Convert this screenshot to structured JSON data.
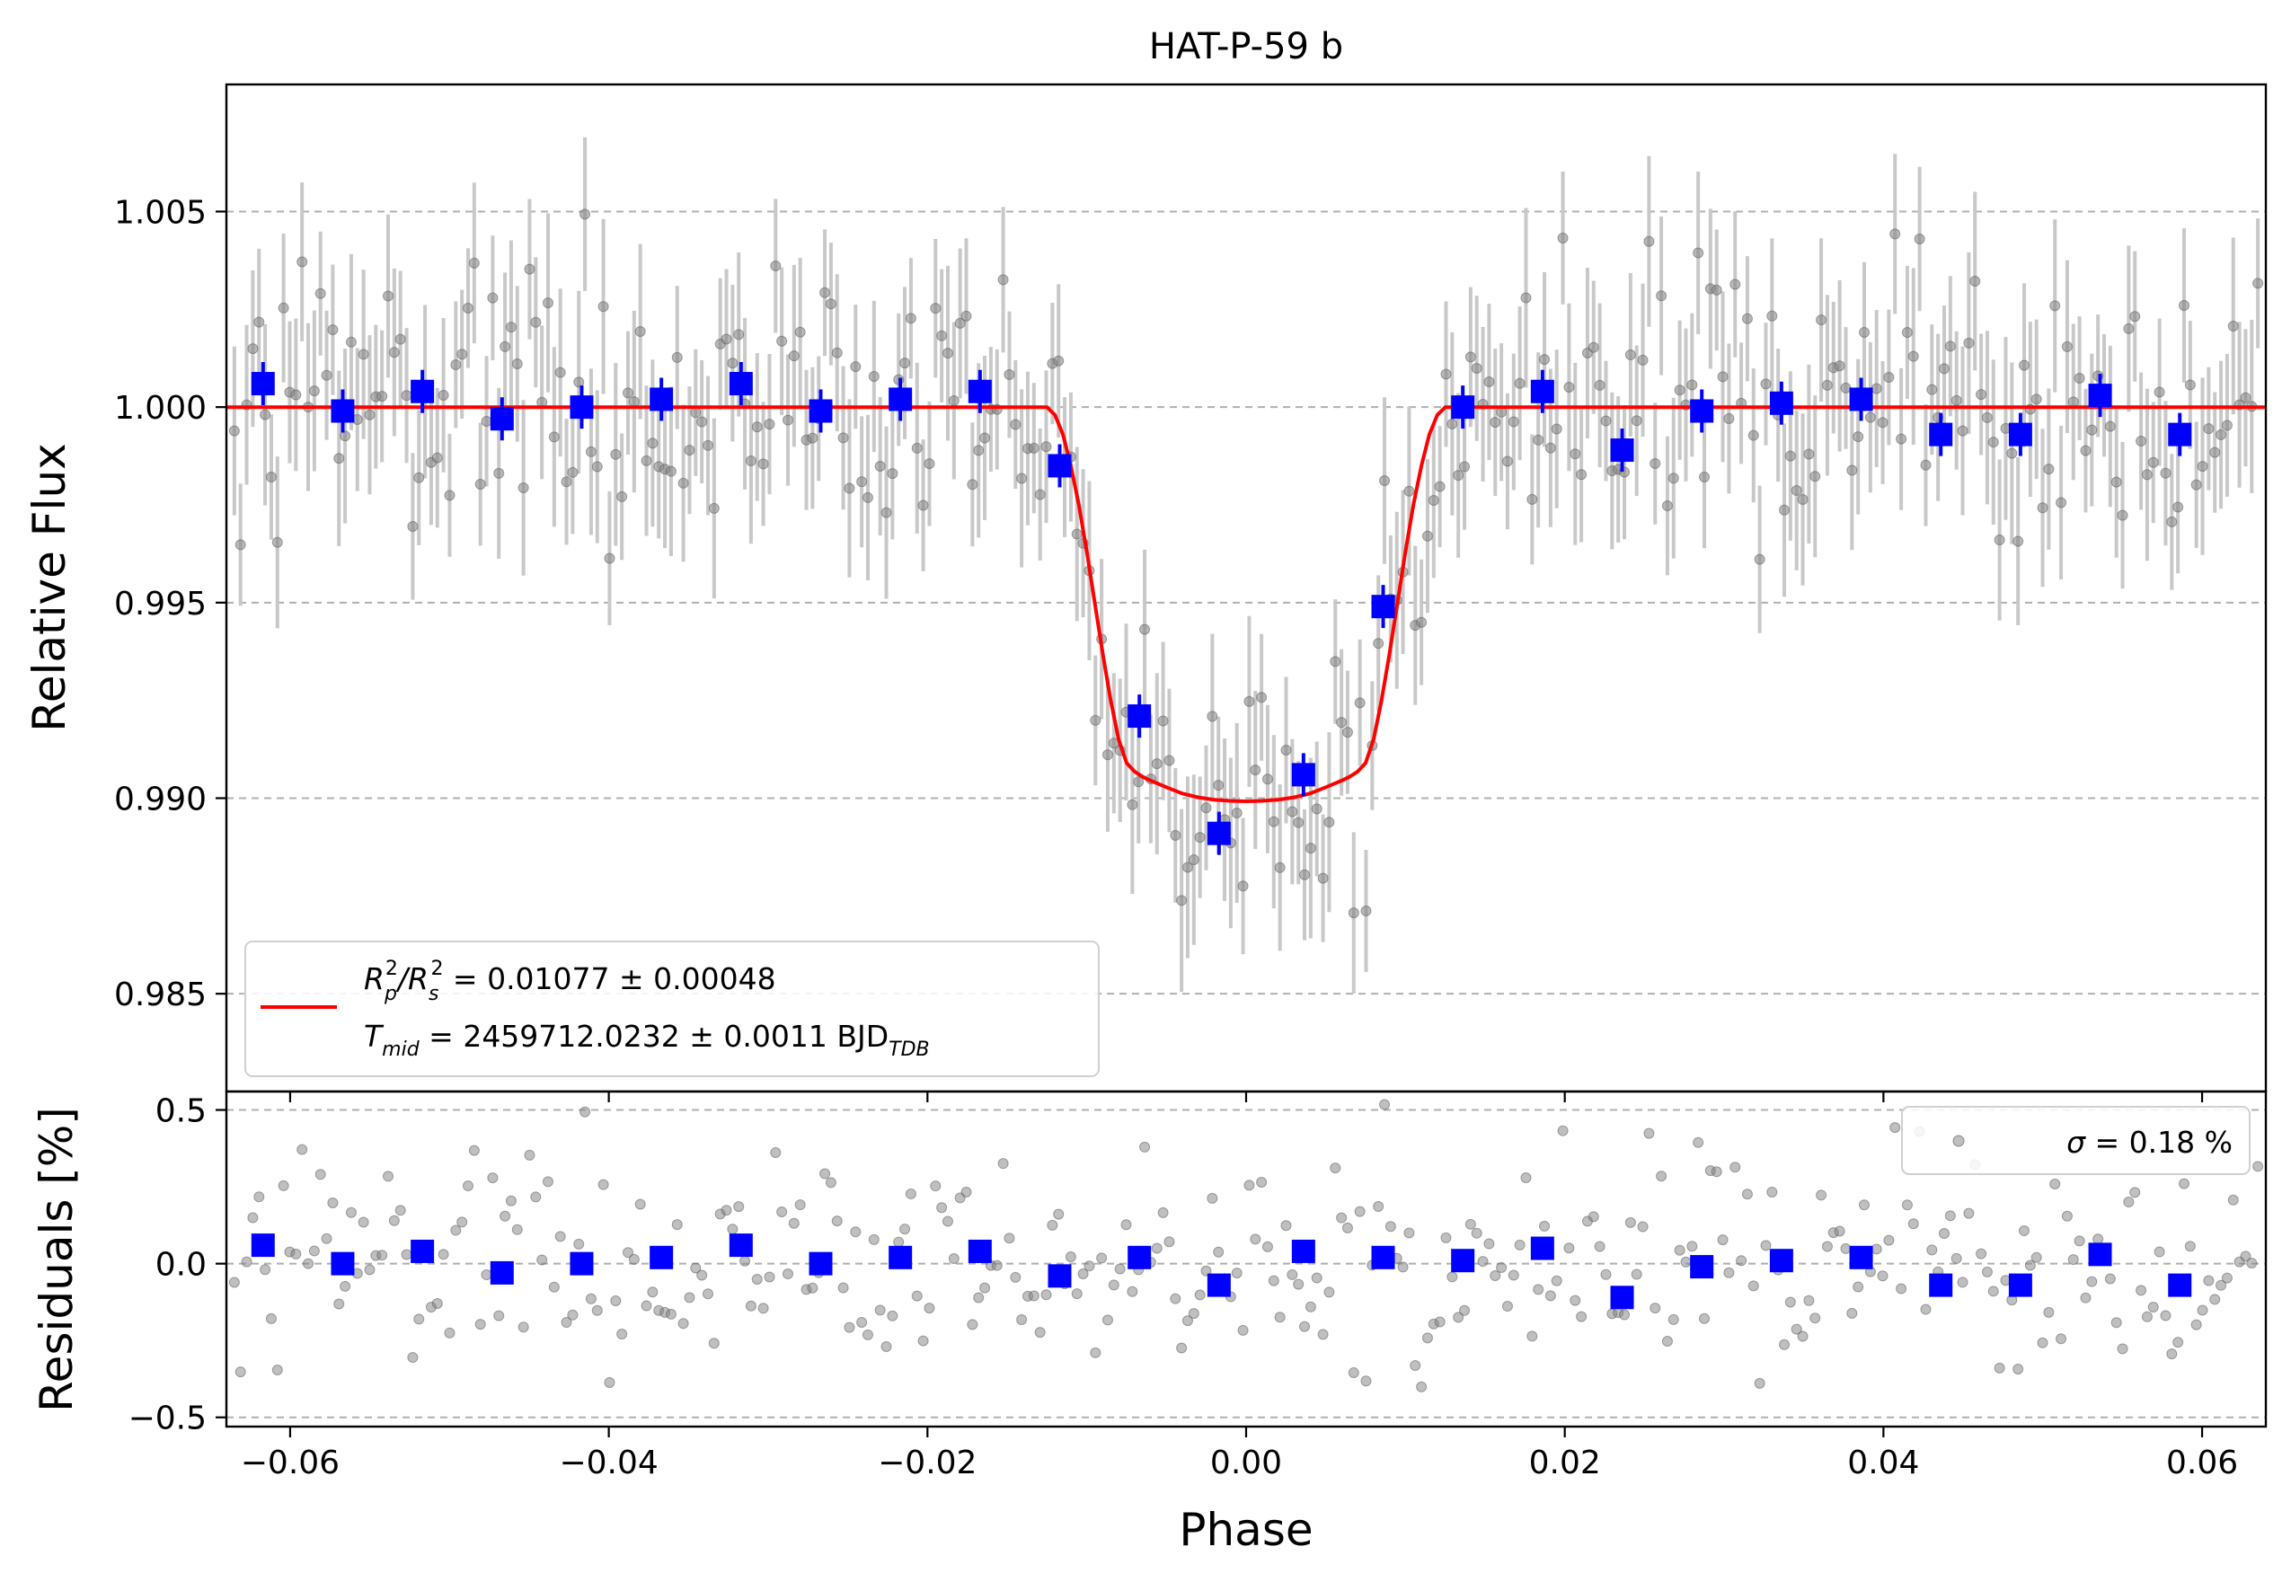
{
  "chart_data": {
    "type": "scatter",
    "title": "HAT-P-59 b",
    "xlabel": "Phase",
    "xlim": [
      -0.064,
      0.064
    ],
    "x_ticks": [
      -0.06,
      -0.04,
      -0.02,
      0.0,
      0.02,
      0.04,
      0.06
    ],
    "x_tick_labels": [
      "−0.06",
      "−0.04",
      "−0.02",
      "0.00",
      "0.02",
      "0.04",
      "0.06"
    ],
    "top_panel": {
      "ylabel": "Relative Flux",
      "ylim": [
        0.9825,
        1.00825
      ],
      "y_ticks": [
        0.985,
        0.99,
        0.995,
        1.0,
        1.005
      ],
      "y_tick_labels": [
        "0.985",
        "0.990",
        "0.995",
        "1.000",
        "1.005"
      ],
      "grid": "horizontal dashed",
      "legend_placement": "lower-left",
      "legend": {
        "line1_base": "R",
        "line1_sub1": "p",
        "line1_sup1": "2",
        "line1_slash": "/R",
        "line1_sub2": "s",
        "line1_sup2": "2",
        "line1_rest": " = 0.01077 ± 0.00048",
        "line2_base": "T",
        "line2_sub": "mid",
        "line2_rest": " = 2459712.0232 ± 0.0011 BJD",
        "line2_sub2": "TDB"
      },
      "model": {
        "name": "transit model",
        "color": "#ff0000",
        "x": [
          -0.064,
          -0.0125,
          -0.012,
          -0.0115,
          -0.011,
          -0.0105,
          -0.01,
          -0.0095,
          -0.009,
          -0.0085,
          -0.008,
          -0.0075,
          -0.007,
          -0.0065,
          -0.006,
          -0.005,
          -0.004,
          -0.003,
          -0.002,
          -0.001,
          0.0,
          0.001,
          0.002,
          0.003,
          0.004,
          0.005,
          0.006,
          0.0065,
          0.007,
          0.0075,
          0.008,
          0.0085,
          0.009,
          0.0095,
          0.01,
          0.0105,
          0.011,
          0.0115,
          0.012,
          0.0125,
          0.064
        ],
        "y": [
          1.0,
          1.0,
          0.9998,
          0.9993,
          0.9985,
          0.9975,
          0.9963,
          0.995,
          0.9937,
          0.9925,
          0.9915,
          0.9909,
          0.99068,
          0.99055,
          0.99045,
          0.99028,
          0.99012,
          0.99002,
          0.98996,
          0.98993,
          0.98992,
          0.98993,
          0.98996,
          0.99002,
          0.99012,
          0.99028,
          0.99045,
          0.99055,
          0.99068,
          0.9909,
          0.9915,
          0.9925,
          0.9937,
          0.995,
          0.9963,
          0.9975,
          0.9985,
          0.9993,
          0.9998,
          1.0,
          1.0
        ]
      },
      "binned": {
        "color": "#0000ff",
        "x": [
          -0.0617,
          -0.0567,
          -0.0517,
          -0.0467,
          -0.0417,
          -0.0367,
          -0.0317,
          -0.0267,
          -0.0217,
          -0.0167,
          -0.0117,
          -0.0067,
          -0.0017,
          0.0036,
          0.0086,
          0.0136,
          0.0186,
          0.0236,
          0.0286,
          0.0336,
          0.0386,
          0.0436,
          0.0486,
          0.0536,
          0.0586
        ],
        "y": [
          1.0006,
          0.9999,
          1.0004,
          0.9997,
          1.0,
          1.0002,
          1.0006,
          0.9999,
          1.0002,
          1.0004,
          0.9985,
          0.9921,
          0.9891,
          0.9906,
          0.9949,
          1.0,
          1.0004,
          0.9989,
          0.9999,
          1.0001,
          1.0002,
          0.9993,
          0.9993,
          1.0003,
          0.9993
        ]
      }
    },
    "bottom_panel": {
      "ylabel": "Residuals [%]",
      "ylim": [
        -0.53,
        0.56
      ],
      "y_ticks": [
        -0.5,
        0.0,
        0.5
      ],
      "y_tick_labels": [
        "−0.5",
        "0.0",
        "0.5"
      ],
      "grid": "horizontal dashed",
      "legend_placement": "top-right",
      "legend": {
        "sigma_symbol": "σ",
        "sigma_text": " = 0.18 %"
      },
      "binned": {
        "color": "#0000ff",
        "x": [
          -0.0617,
          -0.0567,
          -0.0517,
          -0.0467,
          -0.0417,
          -0.0367,
          -0.0317,
          -0.0267,
          -0.0217,
          -0.0167,
          -0.0117,
          -0.0067,
          -0.0017,
          0.0036,
          0.0086,
          0.0136,
          0.0186,
          0.0236,
          0.0286,
          0.0336,
          0.0386,
          0.0436,
          0.0486,
          0.0536,
          0.0586
        ],
        "y": [
          0.06,
          0.0,
          0.04,
          -0.03,
          0.0,
          0.02,
          0.06,
          0.0,
          0.02,
          0.04,
          -0.04,
          0.02,
          -0.07,
          0.04,
          0.02,
          0.01,
          0.05,
          -0.11,
          -0.01,
          0.01,
          0.02,
          -0.07,
          -0.07,
          0.03,
          -0.07
        ]
      }
    },
    "raw_points": {
      "count": 330,
      "color": "#808080",
      "errorbar_color": "#c8c8c8",
      "error_flux": 0.0018
    }
  }
}
